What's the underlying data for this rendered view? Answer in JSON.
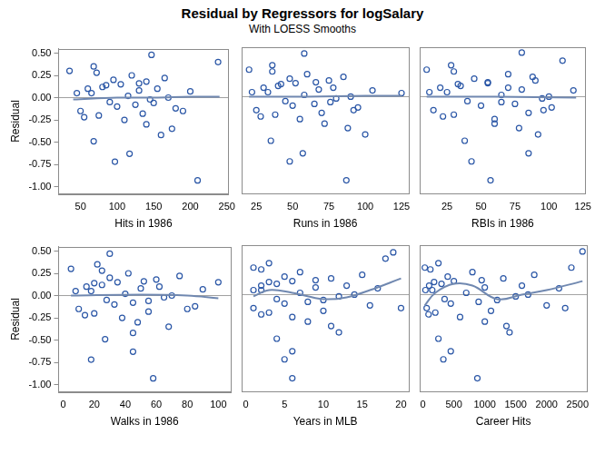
{
  "title": "Residual by Regressors for logSalary",
  "subtitle": "With LOESS Smooths",
  "chart_data": [
    {
      "type": "scatter",
      "x_label": "Hits in 1986",
      "y_label": "Residual",
      "xlim": [
        20,
        252
      ],
      "xticks": [
        50,
        100,
        150,
        200,
        250
      ],
      "ylim": [
        -1.08,
        0.55
      ],
      "yticks": [
        {
          "value": -1,
          "label": "-1.00"
        },
        -0.75,
        {
          "value": -0.5,
          "label": "-0.50"
        },
        -0.25,
        {
          "value": 0,
          "label": "0.00"
        },
        0.25,
        {
          "value": 0.5,
          "label": "0.50"
        }
      ],
      "grid": false,
      "hline": 0,
      "series": [
        {
          "type": "scatter",
          "marker": "circle",
          "color": "#2a56a6",
          "x": [
            35,
            50,
            60,
            65,
            75,
            68,
            80,
            90,
            95,
            100,
            105,
            110,
            115,
            120,
            125,
            130,
            135,
            140,
            145,
            238,
            210,
            97,
            117,
            147,
            68,
            160,
            170,
            155,
            180,
            165,
            140,
            45,
            85,
            150,
            72,
            55,
            200,
            190,
            130,
            175
          ],
          "values": [
            0.3,
            -0.15,
            0.1,
            0.05,
            -0.2,
            0.35,
            0.12,
            -0.05,
            0.2,
            -0.1,
            0.15,
            -0.25,
            0.02,
            0.25,
            -0.08,
            0.08,
            -0.18,
            0.18,
            -0.02,
            0.4,
            -0.93,
            -0.72,
            -0.63,
            0.48,
            -0.49,
            -0.42,
            0.0,
            0.1,
            -0.12,
            0.22,
            -0.3,
            0.05,
            0.14,
            -0.06,
            0.28,
            -0.22,
            0.07,
            -0.15,
            0.16,
            -0.35
          ]
        },
        {
          "type": "line",
          "line_style": "solid",
          "color": "#7088b0",
          "x": [
            40,
            100,
            150,
            200,
            240
          ],
          "values": [
            -0.02,
            0.0,
            0.0,
            0.01,
            0.01
          ]
        }
      ]
    },
    {
      "type": "scatter",
      "x_label": "Runs in 1986",
      "xlim": [
        15,
        130
      ],
      "xticks": [
        25,
        50,
        75,
        100,
        125
      ],
      "ylim": [
        -1.08,
        0.55
      ],
      "yticks": [
        {
          "value": -1,
          "label": "-1.00"
        },
        -0.75,
        {
          "value": -0.5,
          "label": "-0.50"
        },
        -0.25,
        {
          "value": 0,
          "label": "0.00"
        },
        0.25,
        {
          "value": 0.5,
          "label": "0.50"
        }
      ],
      "grid": false,
      "hline": 0,
      "tick_labels": "x",
      "series": [
        {
          "type": "scatter",
          "marker": "circle",
          "color": "#2a56a6",
          "x": [
            20,
            25,
            30,
            33,
            38,
            36,
            40,
            45,
            48,
            50,
            52,
            55,
            58,
            60,
            65,
            68,
            70,
            75,
            80,
            125,
            87,
            48,
            57,
            58,
            35,
            100,
            90,
            78,
            95,
            85,
            72,
            22,
            42,
            76,
            36,
            28,
            105,
            92,
            66,
            88
          ],
          "values": [
            0.3,
            -0.15,
            0.1,
            0.05,
            -0.2,
            0.35,
            0.12,
            -0.05,
            0.2,
            -0.1,
            0.15,
            -0.25,
            0.02,
            0.25,
            -0.08,
            0.08,
            -0.18,
            0.18,
            -0.02,
            0.04,
            -0.93,
            -0.72,
            -0.63,
            0.48,
            -0.49,
            -0.42,
            0.0,
            0.1,
            -0.12,
            0.22,
            -0.3,
            0.05,
            0.14,
            -0.06,
            0.28,
            -0.22,
            0.07,
            -0.15,
            0.16,
            -0.35
          ]
        },
        {
          "type": "line",
          "line_style": "solid",
          "color": "#7088b0",
          "x": [
            20,
            60,
            100,
            125
          ],
          "values": [
            0.0,
            0.0,
            0.01,
            0.01
          ]
        }
      ]
    },
    {
      "type": "scatter",
      "x_label": "RBIs in 1986",
      "xlim": [
        5,
        127
      ],
      "xticks": [
        25,
        50,
        75,
        100,
        125
      ],
      "ylim": [
        -1.08,
        0.55
      ],
      "yticks": [
        {
          "value": -1,
          "label": "-1.00"
        },
        -0.75,
        {
          "value": -0.5,
          "label": "-0.50"
        },
        -0.25,
        {
          "value": 0,
          "label": "0.00"
        },
        0.25,
        {
          "value": 0.5,
          "label": "0.50"
        }
      ],
      "grid": false,
      "hline": 0,
      "tick_labels": "x",
      "series": [
        {
          "type": "scatter",
          "marker": "circle",
          "color": "#2a56a6",
          "x": [
            10,
            15,
            20,
            25,
            30,
            28,
            35,
            40,
            45,
            50,
            55,
            60,
            65,
            70,
            75,
            80,
            85,
            90,
            95,
            110,
            57,
            43,
            85,
            80,
            38,
            92,
            100,
            70,
            102,
            88,
            60,
            12,
            33,
            65,
            30,
            22,
            118,
            96,
            55,
            78
          ],
          "values": [
            0.3,
            -0.15,
            0.1,
            0.05,
            -0.2,
            0.35,
            0.12,
            -0.05,
            0.2,
            -0.1,
            0.15,
            -0.25,
            0.02,
            0.25,
            -0.08,
            0.08,
            -0.18,
            0.18,
            -0.02,
            0.4,
            -0.93,
            -0.72,
            -0.63,
            0.49,
            -0.49,
            -0.42,
            0.0,
            0.1,
            -0.12,
            0.22,
            -0.3,
            0.05,
            0.14,
            -0.06,
            0.28,
            -0.22,
            0.07,
            -0.15,
            0.16,
            -0.35
          ]
        },
        {
          "type": "line",
          "line_style": "solid",
          "color": "#7088b0",
          "x": [
            10,
            60,
            120
          ],
          "values": [
            0.0,
            0.0,
            -0.01
          ]
        }
      ]
    },
    {
      "type": "scatter",
      "x_label": "Walks in 1986",
      "y_label": "Residual",
      "xlim": [
        -3,
        108
      ],
      "xticks": [
        0,
        20,
        40,
        60,
        80,
        100
      ],
      "ylim": [
        -1.08,
        0.55
      ],
      "yticks": [
        {
          "value": -1,
          "label": "-1.00"
        },
        -0.75,
        {
          "value": -0.5,
          "label": "-0.50"
        },
        -0.25,
        {
          "value": 0,
          "label": "0.00"
        },
        0.25,
        {
          "value": 0.5,
          "label": "0.50"
        }
      ],
      "grid": false,
      "hline": 0,
      "series": [
        {
          "type": "scatter",
          "marker": "circle",
          "color": "#2a56a6",
          "x": [
            5,
            10,
            15,
            18,
            20,
            22,
            25,
            28,
            30,
            33,
            35,
            38,
            40,
            42,
            45,
            50,
            55,
            60,
            65,
            100,
            58,
            18,
            45,
            30,
            27,
            45,
            70,
            62,
            85,
            75,
            48,
            8,
            20,
            55,
            25,
            14,
            90,
            80,
            52,
            68
          ],
          "values": [
            0.3,
            -0.15,
            0.1,
            0.05,
            -0.2,
            0.35,
            0.12,
            -0.05,
            0.2,
            -0.1,
            0.15,
            -0.25,
            0.02,
            0.25,
            -0.08,
            0.08,
            -0.18,
            0.18,
            -0.02,
            0.15,
            -0.93,
            -0.72,
            -0.63,
            0.47,
            -0.49,
            -0.42,
            0.0,
            0.1,
            -0.12,
            0.22,
            -0.3,
            0.05,
            0.14,
            -0.06,
            0.28,
            -0.22,
            0.07,
            -0.15,
            0.16,
            -0.35
          ]
        },
        {
          "type": "line",
          "line_style": "solid",
          "color": "#7088b0",
          "x": [
            5,
            50,
            80,
            100
          ],
          "values": [
            0.0,
            0.01,
            0.0,
            -0.03
          ]
        }
      ]
    },
    {
      "type": "scatter",
      "x_label": "Years in MLB",
      "xlim": [
        -0.5,
        21
      ],
      "xticks": [
        0,
        5,
        10,
        15,
        20
      ],
      "ylim": [
        -1.08,
        0.55
      ],
      "yticks": [
        {
          "value": -1,
          "label": "-1.00"
        },
        -0.75,
        {
          "value": -0.5,
          "label": "-0.50"
        },
        -0.25,
        {
          "value": 0,
          "label": "0.00"
        },
        0.25,
        {
          "value": 0.5,
          "label": "0.50"
        }
      ],
      "grid": false,
      "hline": 0,
      "tick_labels": "x",
      "series": [
        {
          "type": "scatter",
          "marker": "circle",
          "color": "#2a56a6",
          "x": [
            1,
            1,
            2,
            2,
            3,
            3,
            4,
            4,
            5,
            5,
            6,
            6,
            7,
            7,
            8,
            9,
            10,
            11,
            12,
            18,
            6,
            5,
            6,
            19,
            4,
            12,
            14,
            13,
            16,
            15,
            8,
            1,
            3,
            10,
            2,
            2,
            17,
            20,
            9,
            11
          ],
          "values": [
            0.3,
            -0.15,
            0.1,
            0.05,
            -0.2,
            0.35,
            0.12,
            -0.05,
            0.2,
            -0.1,
            0.15,
            -0.25,
            0.02,
            0.25,
            -0.08,
            0.08,
            -0.18,
            0.18,
            -0.02,
            0.4,
            -0.93,
            -0.72,
            -0.63,
            0.47,
            -0.49,
            -0.42,
            0.0,
            0.1,
            -0.12,
            0.22,
            -0.3,
            0.05,
            0.14,
            -0.06,
            0.28,
            -0.22,
            0.07,
            -0.15,
            0.16,
            -0.35
          ]
        },
        {
          "type": "line",
          "line_style": "solid",
          "color": "#7088b0",
          "x": [
            1,
            3,
            6,
            10,
            13,
            16,
            20
          ],
          "values": [
            -0.02,
            0.05,
            0.02,
            -0.05,
            -0.03,
            0.05,
            0.18
          ]
        }
      ]
    },
    {
      "type": "scatter",
      "x_label": "Career Hits",
      "xlim": [
        -50,
        2650
      ],
      "xticks": [
        0,
        500,
        1000,
        1500,
        2000,
        2500
      ],
      "ylim": [
        -1.08,
        0.55
      ],
      "yticks": [
        {
          "value": -1,
          "label": "-1.00"
        },
        -0.75,
        {
          "value": -0.5,
          "label": "-0.50"
        },
        -0.25,
        {
          "value": 0,
          "label": "0.00"
        },
        0.25,
        {
          "value": 0.5,
          "label": "0.50"
        }
      ],
      "grid": false,
      "hline": 0,
      "tick_labels": "x",
      "series": [
        {
          "type": "scatter",
          "marker": "circle",
          "color": "#2a56a6",
          "x": [
            30,
            60,
            100,
            150,
            200,
            250,
            300,
            350,
            400,
            450,
            500,
            600,
            700,
            800,
            900,
            1000,
            1100,
            1300,
            1500,
            2400,
            880,
            330,
            450,
            2580,
            250,
            1400,
            1700,
            1600,
            2000,
            1800,
            1000,
            40,
            180,
            1200,
            120,
            90,
            2200,
            2300,
            950,
            1350
          ],
          "values": [
            0.3,
            -0.15,
            0.1,
            0.05,
            -0.2,
            0.35,
            0.12,
            -0.05,
            0.2,
            -0.1,
            0.15,
            -0.25,
            0.02,
            0.25,
            -0.08,
            0.08,
            -0.18,
            0.18,
            -0.02,
            0.3,
            -0.93,
            -0.72,
            -0.63,
            0.48,
            -0.49,
            -0.42,
            0.0,
            0.1,
            -0.12,
            0.22,
            -0.3,
            0.05,
            0.14,
            -0.06,
            0.28,
            -0.22,
            0.07,
            -0.15,
            0.16,
            -0.35
          ]
        },
        {
          "type": "line",
          "line_style": "solid",
          "color": "#7088b0",
          "x": [
            30,
            200,
            500,
            800,
            1200,
            1600,
            2000,
            2580
          ],
          "values": [
            -0.12,
            0.02,
            0.12,
            0.1,
            -0.05,
            0.0,
            0.05,
            0.15
          ]
        }
      ]
    }
  ]
}
